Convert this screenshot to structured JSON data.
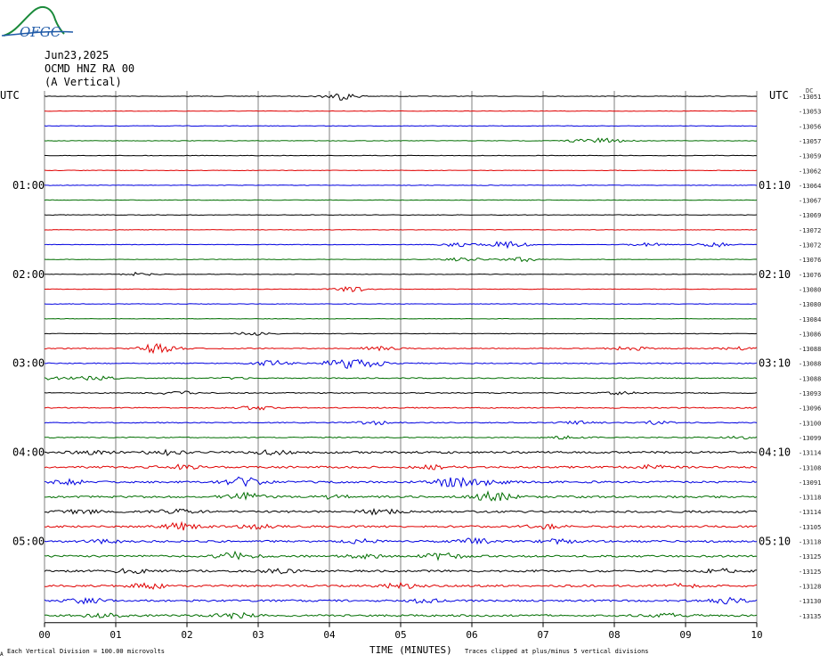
{
  "logo": {
    "text": "OFGC"
  },
  "header": {
    "date": "Jun23,2025",
    "station": "OCMD HNZ RA 00",
    "component": "(A Vertical)"
  },
  "left_tz": "UTC",
  "right_tz": "UTC",
  "right_top_unit": "DC",
  "colors": {
    "cycle": [
      "#000000",
      "#e00000",
      "#0000e0",
      "#006e00"
    ],
    "grid": "#7f7f7f"
  },
  "chart_data": {
    "type": "line",
    "xlabel": "TIME (MINUTES)",
    "x_ticks": [
      "00",
      "01",
      "02",
      "03",
      "04",
      "05",
      "06",
      "07",
      "08",
      "09",
      "10"
    ],
    "xlim": [
      0,
      10
    ],
    "left_time_labels": [
      {
        "row": 6,
        "text": "01:00"
      },
      {
        "row": 12,
        "text": "02:00"
      },
      {
        "row": 18,
        "text": "03:00"
      },
      {
        "row": 24,
        "text": "04:00"
      },
      {
        "row": 30,
        "text": "05:00"
      }
    ],
    "right_time_labels": [
      {
        "row": 6,
        "text": "01:10"
      },
      {
        "row": 12,
        "text": "02:10"
      },
      {
        "row": 18,
        "text": "03:10"
      },
      {
        "row": 24,
        "text": "04:10"
      },
      {
        "row": 30,
        "text": "05:10"
      }
    ],
    "traces": [
      {
        "dc": "-13051",
        "events": [
          [
            4.15,
            4
          ]
        ]
      },
      {
        "dc": "-13053",
        "events": []
      },
      {
        "dc": "-13056",
        "events": []
      },
      {
        "dc": "-13057",
        "events": [
          [
            7.6,
            2
          ],
          [
            7.95,
            2
          ]
        ]
      },
      {
        "dc": "-13059",
        "events": []
      },
      {
        "dc": "-13062",
        "events": []
      },
      {
        "dc": "-13064",
        "events": []
      },
      {
        "dc": "-13067",
        "events": []
      },
      {
        "dc": "-13069",
        "events": []
      },
      {
        "dc": "-13072",
        "events": []
      },
      {
        "dc": "-13072",
        "events": [
          [
            5.8,
            2
          ],
          [
            6.5,
            4
          ],
          [
            8.5,
            2
          ],
          [
            9.4,
            2.5
          ]
        ]
      },
      {
        "dc": "-13076",
        "events": [
          [
            5.9,
            2
          ],
          [
            6.7,
            2.5
          ]
        ]
      },
      {
        "dc": "-13076",
        "events": [
          [
            1.35,
            2
          ]
        ]
      },
      {
        "dc": "-13080",
        "events": [
          [
            4.3,
            3
          ]
        ]
      },
      {
        "dc": "-13080",
        "events": []
      },
      {
        "dc": "-13084",
        "events": []
      },
      {
        "dc": "-13086",
        "events": [
          [
            2.95,
            2
          ]
        ]
      },
      {
        "dc": "-13088",
        "events": [
          [
            1.6,
            5
          ],
          [
            4.7,
            2
          ],
          [
            8.2,
            2
          ],
          [
            9.8,
            1.5
          ]
        ]
      },
      {
        "dc": "-13088",
        "events": [
          [
            3.2,
            3
          ],
          [
            4.2,
            5
          ],
          [
            4.6,
            3
          ]
        ]
      },
      {
        "dc": "-13088",
        "events": [
          [
            0.1,
            1.5
          ],
          [
            0.7,
            2
          ],
          [
            2.7,
            1
          ]
        ]
      },
      {
        "dc": "-13093",
        "events": [
          [
            1.85,
            2
          ],
          [
            8.1,
            1.5
          ]
        ]
      },
      {
        "dc": "-13096",
        "events": [
          [
            2.95,
            2
          ]
        ]
      },
      {
        "dc": "-13100",
        "events": [
          [
            4.6,
            2
          ],
          [
            7.5,
            1.5
          ],
          [
            8.6,
            2
          ]
        ]
      },
      {
        "dc": "-13099",
        "events": [
          [
            7.3,
            1.5
          ],
          [
            9.8,
            1.5
          ]
        ]
      },
      {
        "dc": "-13114",
        "events": [
          [
            0.7,
            2
          ],
          [
            1.7,
            2.5
          ],
          [
            3.2,
            2
          ]
        ]
      },
      {
        "dc": "-13108",
        "events": [
          [
            1.9,
            2.5
          ],
          [
            5.5,
            2
          ],
          [
            8.5,
            2
          ]
        ]
      },
      {
        "dc": "-13091",
        "events": [
          [
            0.3,
            2.5
          ],
          [
            2.8,
            5
          ],
          [
            5.7,
            5
          ],
          [
            6.2,
            3
          ]
        ]
      },
      {
        "dc": "-13118",
        "events": [
          [
            2.8,
            4
          ],
          [
            4.1,
            2
          ],
          [
            6.3,
            5
          ]
        ]
      },
      {
        "dc": "-13114",
        "events": [
          [
            0.5,
            2
          ],
          [
            1.85,
            3
          ],
          [
            4.7,
            2.5
          ]
        ]
      },
      {
        "dc": "-13105",
        "events": [
          [
            1.9,
            3.5
          ],
          [
            3.0,
            2
          ],
          [
            7.0,
            2
          ]
        ]
      },
      {
        "dc": "-13118",
        "events": [
          [
            0.9,
            2
          ],
          [
            4.4,
            2
          ],
          [
            6.05,
            3
          ],
          [
            7.2,
            2
          ]
        ]
      },
      {
        "dc": "-13125",
        "events": [
          [
            2.7,
            4
          ],
          [
            4.5,
            2
          ],
          [
            5.6,
            3.5
          ]
        ]
      },
      {
        "dc": "-13125",
        "events": [
          [
            1.2,
            2
          ],
          [
            3.3,
            2
          ],
          [
            9.5,
            2
          ]
        ]
      },
      {
        "dc": "-13128",
        "events": [
          [
            1.45,
            3
          ],
          [
            5.0,
            2.5
          ],
          [
            8.9,
            2
          ]
        ]
      },
      {
        "dc": "-13130",
        "events": [
          [
            0.6,
            2.5
          ],
          [
            5.3,
            2
          ],
          [
            9.6,
            2.5
          ]
        ]
      },
      {
        "dc": "-13135",
        "events": [
          [
            0.8,
            2
          ],
          [
            2.7,
            3
          ],
          [
            8.8,
            2
          ]
        ]
      }
    ]
  },
  "footer": {
    "scale": "Each Vertical Division =  100.00 microvolts",
    "clip": "Traces clipped at plus/minus 5 vertical divisions",
    "mark": "A"
  }
}
